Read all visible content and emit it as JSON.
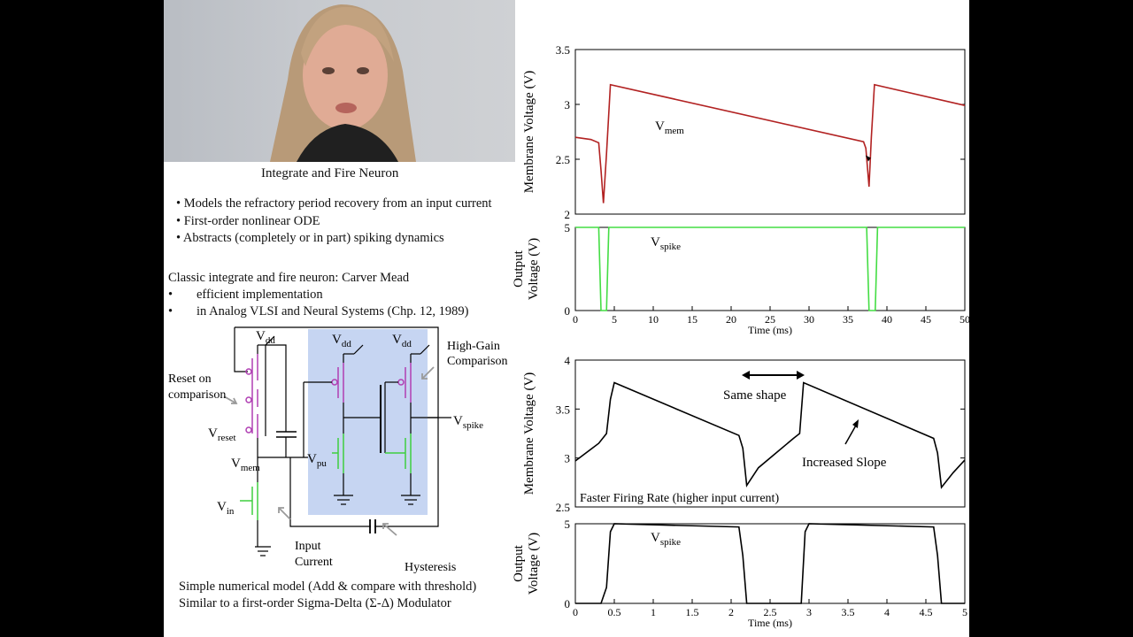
{
  "slide": {
    "title": "Integrate and Fire Neuron",
    "bullets": [
      "• Models the refractory period recovery from an input current",
      "• First-order nonlinear ODE",
      "• Abstracts (completely or in part) spiking dynamics"
    ],
    "classic_heading": "Classic integrate and fire neuron: Carver Mead",
    "classic_items": [
      "efficient implementation",
      "in Analog VLSI and Neural Systems (Chp. 12, 1989)"
    ],
    "bullet_dot": "•",
    "bottom_lines": [
      "Simple numerical model (Add & compare with threshold)",
      "Similar to a first-order Sigma-Delta (Σ-Δ) Modulator"
    ]
  },
  "circuit": {
    "vdd": "V",
    "vdd_sub": "dd",
    "reset_on": "Reset on",
    "comparison": "comparison",
    "vreset": "V",
    "vreset_sub": "reset",
    "vmem": "V",
    "vmem_sub": "mem",
    "vin": "V",
    "vin_sub": "in",
    "vpu": "V",
    "vpu_sub": "pu",
    "vspike": "V",
    "vspike_sub": "spike",
    "high_gain": "High-Gain",
    "comparison2": "Comparison",
    "input": "Input",
    "current": "Current",
    "hysteresis": "Hysteresis",
    "colors": {
      "pmos": "#b03fb3",
      "nmos": "#3fcf3f",
      "box": "#c6d5f2"
    }
  },
  "chart_data": [
    {
      "type": "line",
      "ylabel": "Membrane Voltage (V)",
      "ylim": [
        2,
        3.5
      ],
      "yticks": [
        "2",
        "2.5",
        "3",
        "3.5"
      ],
      "xlim": [
        0,
        50
      ],
      "color": "#b22222",
      "annotation": "V",
      "annotation_sub": "mem",
      "x": [
        0,
        2,
        3,
        3.3,
        3.6,
        4,
        4.5,
        37,
        37.3,
        37.7,
        38,
        38.4,
        50
      ],
      "y": [
        2.7,
        2.68,
        2.65,
        2.4,
        2.1,
        2.55,
        3.18,
        2.66,
        2.6,
        2.25,
        2.7,
        3.18,
        2.99
      ]
    },
    {
      "type": "line",
      "ylabel": "Output Voltage (V)",
      "ylim": [
        0,
        5
      ],
      "yticks": [
        "0",
        "5"
      ],
      "xlim": [
        0,
        50
      ],
      "xticks": [
        "0",
        "5",
        "10",
        "15",
        "20",
        "25",
        "30",
        "35",
        "40",
        "45",
        "50"
      ],
      "xlabel": "Time (ms)",
      "color": "#44dd44",
      "annotation": "V",
      "annotation_sub": "spike",
      "x": [
        0,
        3.0,
        3.3,
        4.0,
        4.3,
        37.4,
        37.7,
        38.5,
        38.8,
        50
      ],
      "y": [
        5,
        5,
        0,
        0,
        5,
        5,
        0,
        0,
        5,
        5
      ]
    },
    {
      "type": "line",
      "ylabel": "Membrane Voltage (V)",
      "ylim": [
        2.5,
        4
      ],
      "yticks": [
        "2.5",
        "3",
        "3.5",
        "4"
      ],
      "xlim": [
        0,
        5
      ],
      "color": "#000000",
      "annotations": [
        "Same shape",
        "Increased Slope",
        "Faster Firing Rate (higher input current)"
      ],
      "x": [
        0,
        0.3,
        0.4,
        0.45,
        0.5,
        2.1,
        2.15,
        2.2,
        2.35,
        2.8,
        2.88,
        2.93,
        4.6,
        4.65,
        4.7,
        4.85,
        5
      ],
      "y": [
        2.97,
        3.15,
        3.25,
        3.6,
        3.77,
        3.23,
        3.1,
        2.72,
        2.9,
        3.2,
        3.25,
        3.77,
        3.2,
        3.05,
        2.7,
        2.85,
        2.98
      ]
    },
    {
      "type": "line",
      "ylabel": "Output Voltage (V)",
      "ylim": [
        0,
        5
      ],
      "yticks": [
        "0",
        "5"
      ],
      "xlim": [
        0,
        5
      ],
      "xticks": [
        "0",
        "0.5",
        "1",
        "1.5",
        "2",
        "2.5",
        "3",
        "3.5",
        "4",
        "4.5",
        "5"
      ],
      "xlabel": "Time (ms)",
      "color": "#000000",
      "annotation": "V",
      "annotation_sub": "spike",
      "x": [
        0,
        0.33,
        0.4,
        0.45,
        0.5,
        2.1,
        2.15,
        2.2,
        2.9,
        2.95,
        3.0,
        4.6,
        4.65,
        4.7,
        5
      ],
      "y": [
        0,
        0,
        1,
        4.5,
        5,
        4.8,
        3,
        0,
        0,
        4.5,
        5,
        4.8,
        3,
        0,
        0
      ]
    }
  ]
}
